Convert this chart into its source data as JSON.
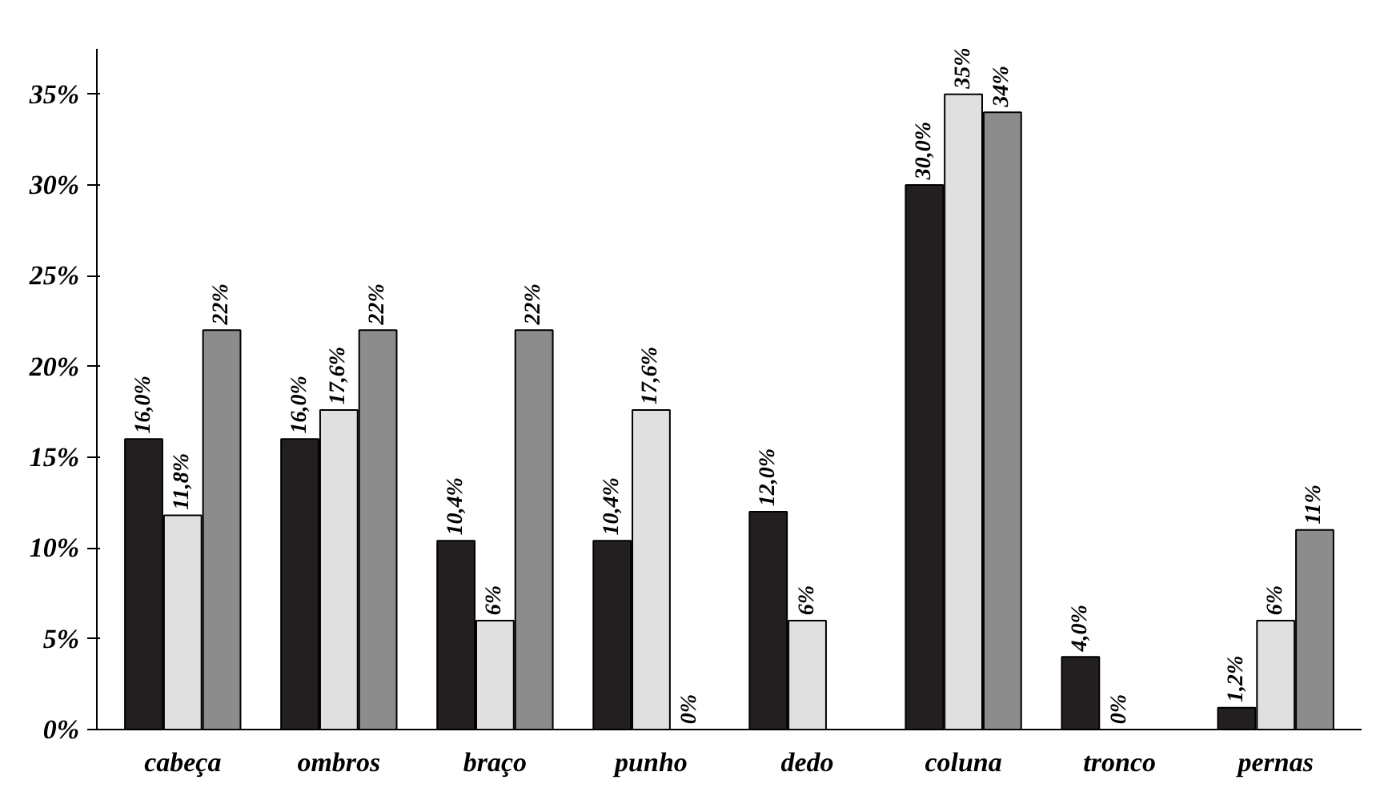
{
  "chart_data": {
    "type": "bar",
    "categories": [
      "cabeça",
      "ombros",
      "braço",
      "punho",
      "dedo",
      "coluna",
      "tronco",
      "pernas"
    ],
    "series": [
      {
        "color": "#231f20",
        "values": [
          16.0,
          16.0,
          10.4,
          10.4,
          12.0,
          30.0,
          4.0,
          1.2
        ],
        "value_labels": [
          "16,0%",
          "16,0%",
          "10,4%",
          "10,4%",
          "12,0%",
          "30,0%",
          "4,0%",
          "1,2%"
        ]
      },
      {
        "color": "#e0e0e0",
        "values": [
          11.8,
          17.6,
          6,
          17.6,
          6,
          35,
          0,
          6
        ],
        "value_labels": [
          "11,8%",
          "17,6%",
          "6%",
          "17,6%",
          "6%",
          "35%",
          "0%",
          "6%"
        ]
      },
      {
        "color": "#8c8c8c",
        "values": [
          22,
          22,
          22,
          0,
          null,
          34,
          null,
          11
        ],
        "value_labels": [
          "22%",
          "22%",
          "22%",
          "0%",
          null,
          "34%",
          null,
          "11%"
        ]
      }
    ],
    "ylim": [
      0,
      37.5
    ],
    "yticks": [
      {
        "value": 0,
        "label": "0%"
      },
      {
        "value": 5,
        "label": "5%"
      },
      {
        "value": 10,
        "label": "10%"
      },
      {
        "value": 15,
        "label": "15%"
      },
      {
        "value": 20,
        "label": "20%"
      },
      {
        "value": 25,
        "label": "25%"
      },
      {
        "value": 30,
        "label": "30%"
      },
      {
        "value": 35,
        "label": "35%"
      }
    ]
  }
}
